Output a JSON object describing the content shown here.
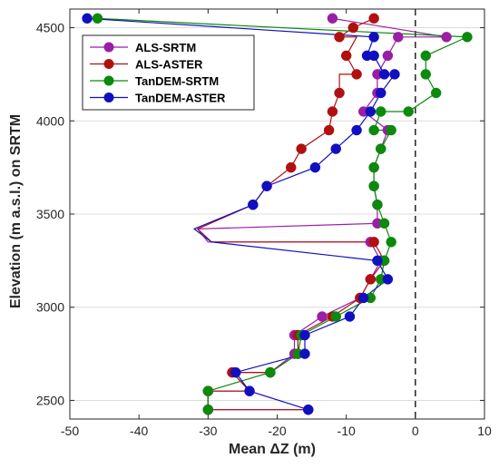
{
  "chart_data": {
    "type": "line",
    "title": "",
    "xlabel": "Mean ΔZ (m)",
    "ylabel": "Elevation (m a.s.l.) on SRTM",
    "xlim": [
      -50,
      10
    ],
    "ylim": [
      2400,
      4600
    ],
    "xticks": [
      -50,
      -40,
      -30,
      -20,
      -10,
      0,
      10
    ],
    "yticks": [
      2500,
      3000,
      3500,
      4000,
      4500
    ],
    "grid": "horizontal",
    "zero_line": "dashed",
    "legend_position": "top-left",
    "series": [
      {
        "name": "ALS-SRTM",
        "color": "#9a1ea6",
        "points": [
          [
            -15.5,
            2450
          ],
          [
            -30,
            2450
          ],
          [
            -30,
            2550
          ],
          [
            -24,
            2550
          ],
          [
            -26.5,
            2650
          ],
          [
            -21,
            2650
          ],
          [
            -17.5,
            2750
          ],
          [
            -17.5,
            2850
          ],
          [
            -13.5,
            2950
          ],
          [
            -8,
            3050
          ],
          [
            -6.5,
            3150
          ],
          [
            -5,
            3250
          ],
          [
            -6.5,
            3350
          ],
          [
            -30,
            3350
          ],
          [
            -31.5,
            3420
          ],
          [
            -5.5,
            3450
          ],
          [
            -5.5,
            3550
          ],
          [
            -6,
            3650
          ],
          [
            -6,
            3750
          ],
          [
            -5,
            3850
          ],
          [
            -4,
            3950
          ],
          [
            -7.5,
            4050
          ],
          [
            -5.5,
            4150
          ],
          [
            -5.5,
            4250
          ],
          [
            -4,
            4350
          ],
          [
            -2.5,
            4450
          ],
          [
            4.5,
            4450
          ],
          [
            -12,
            4550
          ]
        ]
      },
      {
        "name": "ALS-ASTER",
        "color": "#b01010",
        "points": [
          [
            -15.5,
            2450
          ],
          [
            -30,
            2450
          ],
          [
            -30,
            2550
          ],
          [
            -24,
            2550
          ],
          [
            -26.5,
            2650
          ],
          [
            -21,
            2650
          ],
          [
            -17,
            2750
          ],
          [
            -17,
            2850
          ],
          [
            -12,
            2950
          ],
          [
            -8,
            3050
          ],
          [
            -6.5,
            3150
          ],
          [
            -4.5,
            3250
          ],
          [
            -6,
            3350
          ],
          [
            -29.5,
            3350
          ],
          [
            -31.5,
            3420
          ],
          [
            -23.5,
            3550
          ],
          [
            -21.5,
            3650
          ],
          [
            -18,
            3750
          ],
          [
            -16.5,
            3850
          ],
          [
            -12.5,
            3950
          ],
          [
            -12,
            4050
          ],
          [
            -11,
            4150
          ],
          [
            -11,
            4250
          ],
          [
            -8.5,
            4250
          ],
          [
            -10,
            4350
          ],
          [
            -8.5,
            4450
          ],
          [
            -11,
            4450
          ],
          [
            -9,
            4500
          ],
          [
            -6,
            4550
          ]
        ]
      },
      {
        "name": "TanDEM-SRTM",
        "color": "#0b8a0b",
        "points": [
          [
            -30,
            2450
          ],
          [
            -30,
            2550
          ],
          [
            -21,
            2650
          ],
          [
            -17,
            2750
          ],
          [
            -16.5,
            2850
          ],
          [
            -11.5,
            2950
          ],
          [
            -6.5,
            3050
          ],
          [
            -5,
            3150
          ],
          [
            -4.5,
            3250
          ],
          [
            -3.5,
            3350
          ],
          [
            -4.5,
            3450
          ],
          [
            -5.5,
            3550
          ],
          [
            -6,
            3650
          ],
          [
            -6,
            3750
          ],
          [
            -5,
            3850
          ],
          [
            -3.5,
            3950
          ],
          [
            -6,
            3950
          ],
          [
            -5,
            4050
          ],
          [
            -1,
            4050
          ],
          [
            3,
            4150
          ],
          [
            1.5,
            4250
          ],
          [
            1.5,
            4350
          ],
          [
            7.5,
            4450
          ],
          [
            -46,
            4550
          ]
        ]
      },
      {
        "name": "TanDEM-ASTER",
        "color": "#1010c0",
        "points": [
          [
            -15.5,
            2450
          ],
          [
            -24,
            2550
          ],
          [
            -26,
            2650
          ],
          [
            -16,
            2750
          ],
          [
            -16,
            2850
          ],
          [
            -9.5,
            2950
          ],
          [
            -7.5,
            3050
          ],
          [
            -4,
            3150
          ],
          [
            -5.5,
            3250
          ],
          [
            -29.5,
            3350
          ],
          [
            -32,
            3420
          ],
          [
            -23.5,
            3550
          ],
          [
            -21.5,
            3650
          ],
          [
            -14.5,
            3750
          ],
          [
            -11.5,
            3850
          ],
          [
            -8.5,
            3950
          ],
          [
            -6.5,
            4050
          ],
          [
            -5,
            4150
          ],
          [
            -3,
            4250
          ],
          [
            -4.5,
            4250
          ],
          [
            -6,
            4350
          ],
          [
            -7,
            4350
          ],
          [
            -6,
            4450
          ],
          [
            -47.5,
            4550
          ]
        ]
      }
    ],
    "markers": [
      {
        "series": 0,
        "points": [
          [
            -15.5,
            2450
          ],
          [
            -30,
            2450
          ],
          [
            -30,
            2550
          ],
          [
            -24,
            2550
          ],
          [
            -26.5,
            2650
          ],
          [
            -21,
            2650
          ],
          [
            -17.5,
            2750
          ],
          [
            -17.5,
            2850
          ],
          [
            -13.5,
            2950
          ],
          [
            -8,
            3050
          ],
          [
            -6.5,
            3150
          ],
          [
            -5,
            3250
          ],
          [
            -6.5,
            3350
          ],
          [
            -5.5,
            3450
          ],
          [
            -5.5,
            3550
          ],
          [
            -6,
            3650
          ],
          [
            -6,
            3750
          ],
          [
            -5,
            3850
          ],
          [
            -4,
            3950
          ],
          [
            -7.5,
            4050
          ],
          [
            -5.5,
            4150
          ],
          [
            -5.5,
            4250
          ],
          [
            -4,
            4350
          ],
          [
            -2.5,
            4450
          ],
          [
            4.5,
            4450
          ],
          [
            -12,
            4550
          ]
        ]
      },
      {
        "series": 1,
        "points": [
          [
            -30,
            2450
          ],
          [
            -30,
            2550
          ],
          [
            -26.5,
            2650
          ],
          [
            -21,
            2650
          ],
          [
            -17,
            2750
          ],
          [
            -17,
            2850
          ],
          [
            -12,
            2950
          ],
          [
            -8,
            3050
          ],
          [
            -6.5,
            3150
          ],
          [
            -4.5,
            3250
          ],
          [
            -6,
            3350
          ],
          [
            -23.5,
            3550
          ],
          [
            -21.5,
            3650
          ],
          [
            -18,
            3750
          ],
          [
            -16.5,
            3850
          ],
          [
            -12.5,
            3950
          ],
          [
            -12,
            4050
          ],
          [
            -11,
            4150
          ],
          [
            -8.5,
            4250
          ],
          [
            -10,
            4350
          ],
          [
            -11,
            4450
          ],
          [
            -9,
            4500
          ],
          [
            -6,
            4550
          ]
        ]
      },
      {
        "series": 2,
        "points": [
          [
            -30,
            2450
          ],
          [
            -30,
            2550
          ],
          [
            -21,
            2650
          ],
          [
            -17,
            2750
          ],
          [
            -16.5,
            2850
          ],
          [
            -11.5,
            2950
          ],
          [
            -6.5,
            3050
          ],
          [
            -5,
            3150
          ],
          [
            -4.5,
            3250
          ],
          [
            -3.5,
            3350
          ],
          [
            -4.5,
            3450
          ],
          [
            -5.5,
            3550
          ],
          [
            -6,
            3650
          ],
          [
            -6,
            3750
          ],
          [
            -5,
            3850
          ],
          [
            -3.5,
            3950
          ],
          [
            -6,
            3950
          ],
          [
            -5,
            4050
          ],
          [
            -1,
            4050
          ],
          [
            3,
            4150
          ],
          [
            1.5,
            4250
          ],
          [
            1.5,
            4350
          ],
          [
            7.5,
            4450
          ],
          [
            -46,
            4550
          ]
        ]
      },
      {
        "series": 3,
        "points": [
          [
            -15.5,
            2450
          ],
          [
            -24,
            2550
          ],
          [
            -26,
            2650
          ],
          [
            -16,
            2750
          ],
          [
            -16,
            2850
          ],
          [
            -9.5,
            2950
          ],
          [
            -7.5,
            3050
          ],
          [
            -4,
            3150
          ],
          [
            -5.5,
            3250
          ],
          [
            -23.5,
            3550
          ],
          [
            -21.5,
            3650
          ],
          [
            -14.5,
            3750
          ],
          [
            -11.5,
            3850
          ],
          [
            -8.5,
            3950
          ],
          [
            -6.5,
            4050
          ],
          [
            -5,
            4150
          ],
          [
            -3,
            4250
          ],
          [
            -4.5,
            4250
          ],
          [
            -6,
            4350
          ],
          [
            -7,
            4350
          ],
          [
            -6,
            4450
          ],
          [
            -47.5,
            4550
          ]
        ]
      }
    ]
  }
}
